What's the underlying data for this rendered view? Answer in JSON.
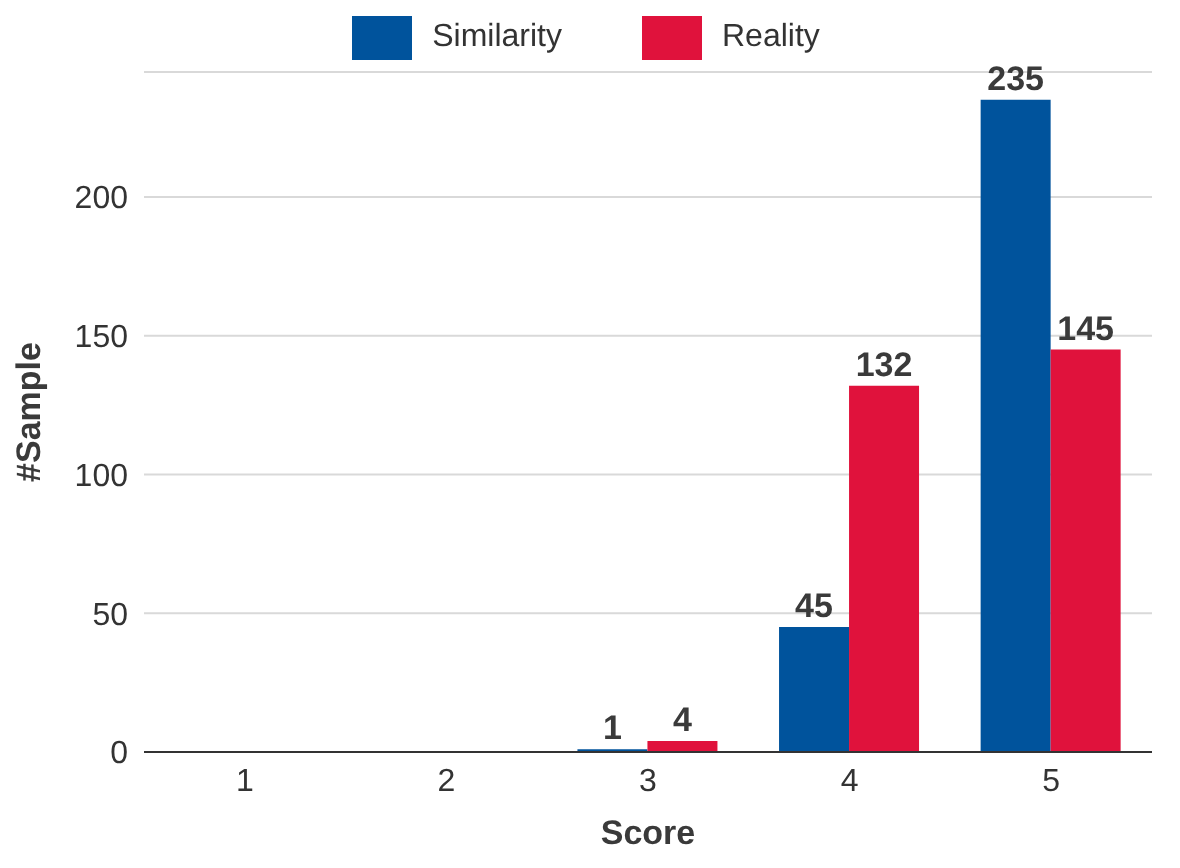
{
  "chart_data": {
    "type": "bar",
    "xlabel": "Score",
    "ylabel": "#Sample",
    "categories": [
      "1",
      "2",
      "3",
      "4",
      "5"
    ],
    "series": [
      {
        "name": "Similarity",
        "color": "#00539c",
        "values": [
          0,
          0,
          1,
          45,
          235
        ],
        "value_labels": [
          null,
          null,
          "1",
          "45",
          "235"
        ]
      },
      {
        "name": "Reality",
        "color": "#e0123c",
        "values": [
          0,
          0,
          4,
          132,
          145
        ],
        "value_labels": [
          null,
          null,
          "4",
          "132",
          "145"
        ]
      }
    ],
    "ylim": [
      0,
      245
    ],
    "yticks": [
      0,
      50,
      100,
      150,
      200
    ],
    "grid": "y",
    "legend": "top"
  }
}
